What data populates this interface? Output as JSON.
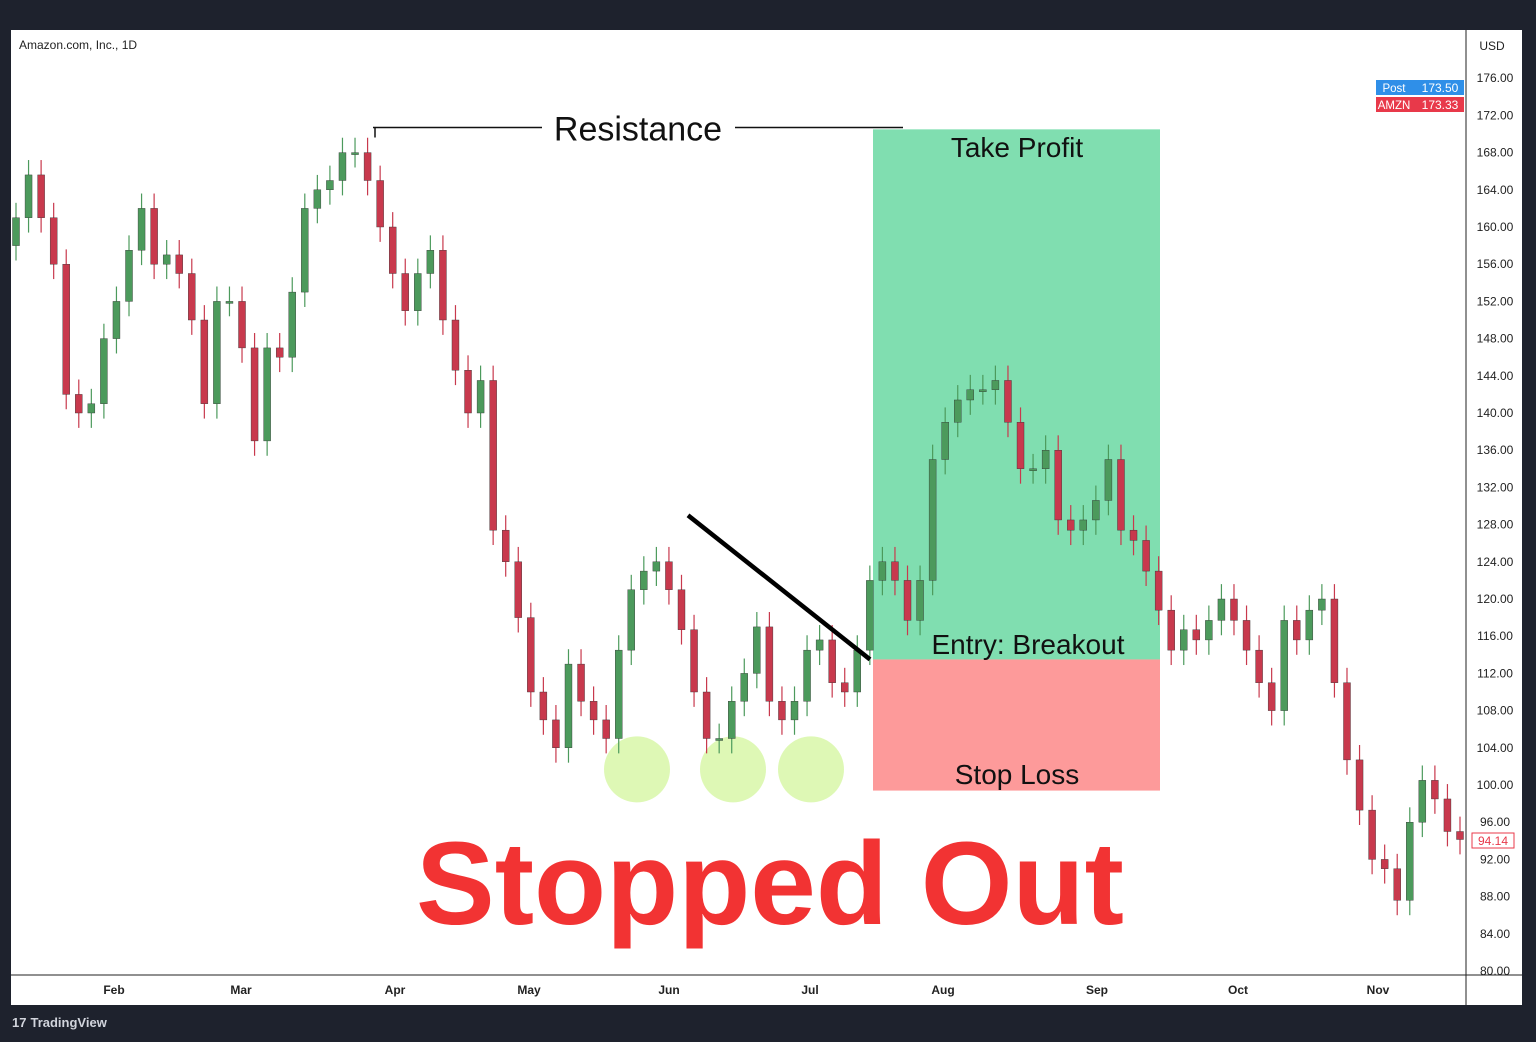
{
  "header": {
    "symbol_title": "Amazon.com, Inc., 1D",
    "currency": "USD"
  },
  "footer": {
    "brand": "TradingView",
    "logo_icon": "tradingview-logo-icon"
  },
  "price_labels": [
    {
      "tag": "Post",
      "value": "173.50",
      "color": "#2f8fe8"
    },
    {
      "tag": "AMZN",
      "value": "173.33",
      "color": "#e8394a"
    },
    {
      "tag": "",
      "value": "94.14",
      "color": "#e8394a"
    }
  ],
  "colors": {
    "up": "#4c9a5c",
    "down": "#c8394d",
    "take_profit": "#80deb0",
    "stop_loss": "#fd9a9a",
    "stopped_out": "#f23333",
    "highlight": "#d8f7a8"
  },
  "annotations": {
    "resistance": {
      "label": "Resistance",
      "price": 170.7
    },
    "take_profit": {
      "label": "Take Profit",
      "top": 170.5,
      "bottom": 113.5
    },
    "entry": {
      "label": "Entry: Breakout",
      "price": 113.5
    },
    "stop_loss": {
      "label": "Stop Loss",
      "top": 113.5,
      "bottom": 99.4
    },
    "trendline": {
      "from": 129,
      "to": 113.5
    },
    "support_touches_price": 102,
    "headline": "Stopped Out"
  },
  "chart_data": {
    "type": "candlestick",
    "title": "Amazon.com, Inc., 1D",
    "ylabel": "USD",
    "ylim": [
      80,
      176
    ],
    "yticks": [
      "80.00",
      "84.00",
      "88.00",
      "92.00",
      "96.00",
      "100.00",
      "104.00",
      "108.00",
      "112.00",
      "116.00",
      "120.00",
      "124.00",
      "128.00",
      "132.00",
      "136.00",
      "140.00",
      "144.00",
      "148.00",
      "152.00",
      "156.00",
      "160.00",
      "164.00",
      "168.00",
      "172.00",
      "176.00"
    ],
    "xticks": [
      "Feb",
      "Mar",
      "Apr",
      "May",
      "Jun",
      "Jul",
      "Aug",
      "Sep",
      "Oct",
      "Nov"
    ],
    "grid": false,
    "closes": [
      161,
      165.6,
      161,
      156,
      142,
      140,
      141,
      148,
      152,
      157.5,
      162,
      156,
      157,
      155,
      150,
      141,
      152,
      152,
      147,
      137,
      147,
      146,
      153,
      162,
      164,
      165,
      168,
      168,
      165,
      160,
      155,
      151,
      155,
      157.5,
      150,
      144.6,
      140,
      143.5,
      127.4,
      124,
      118,
      110,
      107,
      104,
      113,
      109,
      107,
      105,
      114.5,
      121,
      123,
      124,
      121,
      116.7,
      110,
      105,
      105,
      109,
      112,
      117,
      109,
      107,
      109,
      114.5,
      115.6,
      111,
      110,
      114.5,
      122,
      124,
      122,
      117.7,
      122,
      135,
      139,
      141.4,
      142.5,
      142.5,
      143.5,
      139,
      134,
      134,
      136,
      128.5,
      127.4,
      128.5,
      130.6,
      135,
      127.4,
      126.3,
      123,
      118.8,
      114.5,
      116.7,
      115.6,
      117.7,
      120,
      117.7,
      114.5,
      111,
      108,
      117.7,
      115.6,
      118.8,
      120,
      111,
      102.7,
      97.3,
      92,
      91,
      87.6,
      96,
      100.5,
      98.5,
      95,
      94.14
    ]
  }
}
